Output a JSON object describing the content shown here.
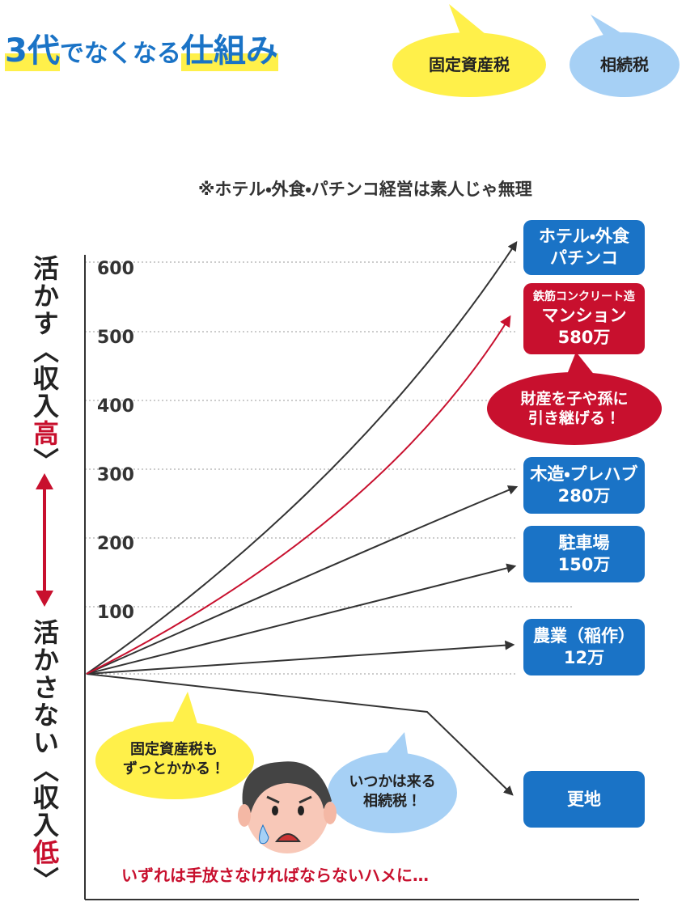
{
  "title": {
    "parts": [
      "3代",
      "でなくなる",
      "仕組み"
    ]
  },
  "header_bubbles": [
    "固定資産税",
    "相続税"
  ],
  "note": "※ホテル・外食・パチンコ経営は素人じゃ無理",
  "y_axis": {
    "high_label": [
      "活かす〈収入",
      "高",
      "〉"
    ],
    "low_label": [
      "活かさない〈収入",
      "低",
      "〉"
    ],
    "ticks": [
      "600",
      "500",
      "400",
      "300",
      "200",
      "100"
    ]
  },
  "boxes": [
    {
      "lines": [
        "ホテル・外食",
        "パチンコ"
      ]
    },
    {
      "lines": [
        "鉄筋コンクリート造",
        "マンション",
        "580万"
      ]
    },
    {
      "lines": [
        "木造・プレハブ",
        "280万"
      ]
    },
    {
      "lines": [
        "駐車場",
        "150万"
      ]
    },
    {
      "lines": [
        "農業（稲作）",
        "12万"
      ]
    },
    {
      "lines": [
        "更地"
      ]
    }
  ],
  "callouts": [
    {
      "lines": [
        "財産を子や孫に",
        "引き継げる！"
      ]
    },
    {
      "lines": [
        "固定資産税も",
        "ずっとかかる！"
      ]
    },
    {
      "lines": [
        "いつかは来る",
        "相続税！"
      ]
    }
  ],
  "footer": "いずれは手放さなければならないハメに…"
}
